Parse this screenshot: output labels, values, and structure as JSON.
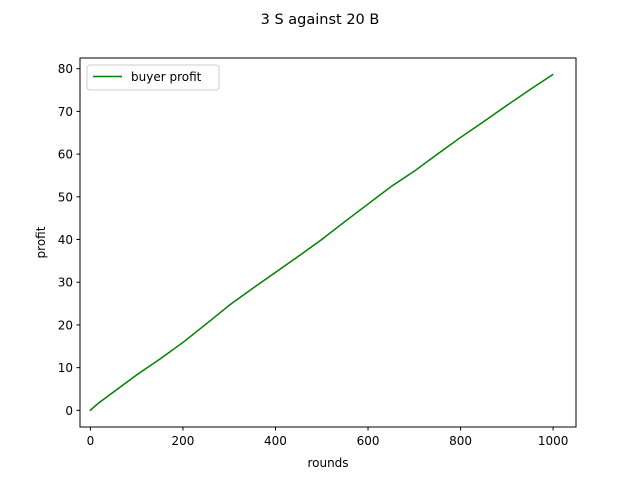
{
  "chart_data": {
    "type": "line",
    "title": "3 S against 20 B",
    "xlabel": "rounds",
    "ylabel": "profit",
    "xlim": [
      -22.5,
      1049.5
    ],
    "ylim": [
      -3.9,
      82.5
    ],
    "xticks": [
      0,
      200,
      400,
      600,
      800,
      1000
    ],
    "yticks": [
      0,
      10,
      20,
      30,
      40,
      50,
      60,
      70,
      80
    ],
    "grid": false,
    "legend_position": "upper left",
    "series": [
      {
        "name": "buyer profit",
        "color": "#008000",
        "x": [
          0,
          10,
          20,
          50,
          100,
          150,
          200,
          250,
          300,
          350,
          400,
          450,
          500,
          550,
          600,
          650,
          700,
          750,
          800,
          850,
          900,
          950,
          999
        ],
        "y": [
          0,
          1.0,
          1.9,
          4.3,
          8.3,
          12.0,
          15.9,
          20.2,
          24.6,
          28.5,
          32.3,
          36.1,
          40.0,
          44.2,
          48.3,
          52.4,
          56.0,
          60.0,
          63.9,
          67.6,
          71.4,
          75.1,
          78.6
        ]
      }
    ]
  }
}
